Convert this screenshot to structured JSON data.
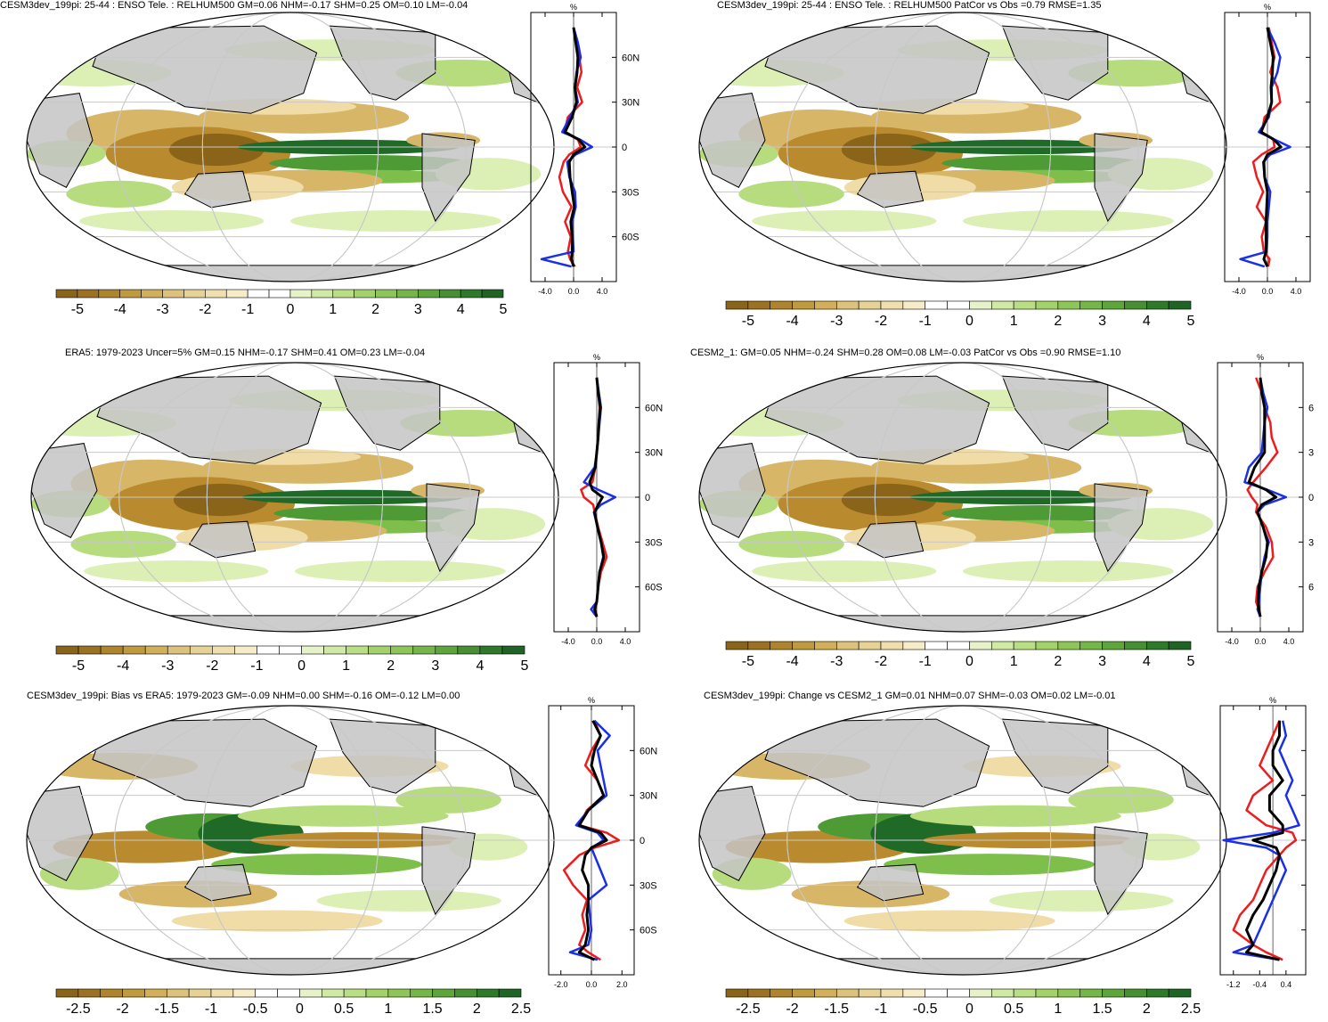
{
  "colors": {
    "brown_dark": "#8a6418",
    "brown": "#b98a2e",
    "tan": "#d8b668",
    "tan_light": "#efdca6",
    "white": "#ffffff",
    "green_pale": "#dcefb4",
    "green_light": "#b6dc7e",
    "green": "#7ebf4c",
    "green_mid": "#4e9a34",
    "green_dark": "#1f6a27",
    "land": "#c4c4c4",
    "grid": "#c8c8c8",
    "curve_red": "#ee1c1c",
    "curve_blue": "#1a2fe6",
    "curve_black": "#000000"
  },
  "colorbar_main": {
    "labels": [
      "-5",
      "-4",
      "-3",
      "-2",
      "-1",
      "0",
      "1",
      "2",
      "3",
      "4",
      "5"
    ],
    "colors": [
      "#8a6418",
      "#9c7222",
      "#ae842c",
      "#c09a3e",
      "#d2b05a",
      "#dcc27a",
      "#e6d294",
      "#efdfad",
      "#f6ecc8",
      "#ffffff",
      "#ffffff",
      "#e6f3c8",
      "#d0e9a4",
      "#bade84",
      "#a4d26a",
      "#8ec558",
      "#76b648",
      "#5ea53c",
      "#468f32",
      "#2f7a2a",
      "#1f6424"
    ]
  },
  "colorbar_diff": {
    "labels": [
      "-2.5",
      "-2",
      "-1.5",
      "-1",
      "-0.5",
      "0",
      "0.5",
      "1",
      "1.5",
      "2",
      "2.5"
    ],
    "colors": [
      "#8a6418",
      "#9c7222",
      "#ae842c",
      "#c09a3e",
      "#d2b05a",
      "#dcc27a",
      "#e6d294",
      "#efdfad",
      "#f6ecc8",
      "#ffffff",
      "#ffffff",
      "#e6f3c8",
      "#d0e9a4",
      "#bade84",
      "#a4d26a",
      "#8ec558",
      "#76b648",
      "#5ea53c",
      "#468f32",
      "#2f7a2a",
      "#1f6424"
    ]
  },
  "panels": [
    {
      "title": "CESM3dev_199pi: 25-44 : ENSO Tele. : RELHUM500 GM=0.06 NHM=-0.17 SHM=0.25 OM=0.10 LM=-0.04",
      "unit": "%",
      "xticks": [
        "-4.0",
        "0.0",
        "4.0"
      ],
      "xlim": [
        -6,
        6
      ],
      "lat_labels": [
        "60N",
        "30N",
        "0",
        "30S",
        "60S"
      ],
      "colorbar": "main"
    },
    {
      "title": "CESM3dev_199pi: 25-44 : ENSO Tele. : RELHUM500 PatCor vs Obs =0.79 RMSE=1.35",
      "unit": "%",
      "xticks": [
        "-4.0",
        "0.0",
        "4.0"
      ],
      "xlim": [
        -6,
        6
      ],
      "lat_labels": [
        "",
        "",
        "",
        "",
        ""
      ],
      "colorbar": "main"
    },
    {
      "title": "ERA5: 1979-2023 Uncer=5% GM=0.15 NHM=-0.17 SHM=0.41 OM=0.23 LM=-0.04",
      "unit": "%",
      "xticks": [
        "-4.0",
        "0.0",
        "4.0"
      ],
      "xlim": [
        -6,
        6
      ],
      "lat_labels": [
        "60N",
        "30N",
        "0",
        "30S",
        "60S"
      ],
      "colorbar": "main"
    },
    {
      "title": "CESM2_1: GM=0.05 NHM=-0.24 SHM=0.28 OM=0.08 LM=-0.03 PatCor vs Obs =0.90 RMSE=1.10",
      "unit": "%",
      "xticks": [
        "-4.0",
        "0.0",
        "4.0"
      ],
      "xlim": [
        -6,
        6
      ],
      "lat_labels": [
        "6",
        "3",
        "0",
        "3",
        "6"
      ],
      "colorbar": "main"
    },
    {
      "title": "CESM3dev_199pi: Bias vs ERA5: 1979-2023 GM=-0.09 NHM=0.00 SHM=-0.16 OM=-0.12 LM=0.00",
      "unit": "%",
      "xticks": [
        "-2.0",
        "0.0",
        "2.0"
      ],
      "xlim": [
        -2.8,
        2.8
      ],
      "lat_labels": [
        "60N",
        "30N",
        "0",
        "30S",
        "60S"
      ],
      "colorbar": "diff"
    },
    {
      "title": "CESM3dev_199pi: Change vs CESM2_1 GM=0.01 NHM=0.07 SHM=-0.03 OM=0.02 LM=-0.01",
      "unit": "%",
      "xticks": [
        "-1.2",
        "-0.4",
        "0.4"
      ],
      "xlim": [
        -1.6,
        1.0
      ],
      "lat_labels": [
        "",
        "",
        "",
        "",
        ""
      ],
      "colorbar": "diff"
    }
  ],
  "chart_data": [
    {
      "type": "line",
      "title": "CESM3dev_199pi: 25-44 : ENSO Tele. : RELHUM500 GM=0.06 NHM=-0.17 SHM=0.25 OM=0.10 LM=-0.04",
      "xlabel": "%",
      "ylabel": "",
      "xlim": [
        -6,
        6
      ],
      "ylim": [
        -90,
        90
      ],
      "y": [
        80,
        70,
        60,
        50,
        40,
        30,
        20,
        10,
        5,
        0,
        -5,
        -10,
        -20,
        -30,
        -40,
        -50,
        -60,
        -70,
        -75,
        -80
      ],
      "series": [
        {
          "color": "#ee1c1c",
          "values": [
            0.0,
            0.4,
            0.8,
            1.1,
            0.5,
            1.2,
            -0.8,
            -1.3,
            0.6,
            1.0,
            -0.6,
            -1.4,
            -2.0,
            -1.5,
            -0.3,
            -1.2,
            -0.4,
            -0.8,
            -0.5,
            0.2
          ]
        },
        {
          "color": "#1a2fe6",
          "values": [
            0.0,
            0.6,
            1.0,
            0.4,
            0.2,
            0.6,
            -0.5,
            -1.6,
            0.9,
            2.6,
            0.3,
            -0.9,
            -0.6,
            0.2,
            0.3,
            -0.2,
            -0.1,
            0.0,
            -4.5,
            -0.3
          ]
        },
        {
          "color": "#000000",
          "values": [
            0.0,
            0.3,
            0.6,
            0.5,
            0.2,
            0.4,
            -0.2,
            -1.2,
            0.7,
            1.6,
            0.0,
            -0.6,
            -0.5,
            -0.2,
            0.1,
            -0.4,
            -0.2,
            -0.2,
            -0.3,
            0.0
          ]
        }
      ]
    },
    {
      "type": "line",
      "title": "CESM3dev_199pi: 25-44 : ENSO Tele. : RELHUM500 PatCor vs Obs =0.79 RMSE=1.35",
      "xlabel": "%",
      "ylabel": "",
      "xlim": [
        -6,
        6
      ],
      "ylim": [
        -90,
        90
      ],
      "y": [
        80,
        70,
        60,
        50,
        40,
        30,
        20,
        10,
        5,
        0,
        -5,
        -10,
        -20,
        -30,
        -40,
        -50,
        -60,
        -70,
        -75,
        -80
      ],
      "series": [
        {
          "color": "#ee1c1c",
          "values": [
            0.2,
            0.6,
            1.0,
            0.4,
            1.4,
            1.8,
            -0.4,
            -0.8,
            0.8,
            1.0,
            -0.8,
            -2.0,
            -1.5,
            -0.6,
            -1.5,
            -0.2,
            -0.8,
            -0.5,
            0.3,
            0.1
          ]
        },
        {
          "color": "#1a2fe6",
          "values": [
            0.0,
            1.0,
            1.8,
            1.4,
            0.6,
            0.6,
            0.2,
            -1.2,
            1.0,
            3.2,
            0.4,
            -0.6,
            -0.4,
            0.4,
            0.2,
            0.0,
            0.0,
            -0.1,
            -3.8,
            -0.4
          ]
        },
        {
          "color": "#000000",
          "values": [
            0.0,
            0.4,
            0.8,
            0.7,
            0.5,
            0.6,
            0.0,
            -0.9,
            0.9,
            1.9,
            0.0,
            -0.5,
            -0.4,
            0.0,
            -0.1,
            -0.2,
            -0.2,
            -0.2,
            -0.5,
            0.0
          ]
        }
      ]
    },
    {
      "type": "line",
      "title": "ERA5: 1979-2023 Uncer=5% GM=0.15 NHM=-0.17 SHM=0.41 OM=0.23 LM=-0.04",
      "xlabel": "%",
      "ylabel": "",
      "xlim": [
        -6,
        6
      ],
      "ylim": [
        -90,
        90
      ],
      "y": [
        80,
        70,
        60,
        50,
        40,
        30,
        20,
        10,
        5,
        0,
        -5,
        -10,
        -20,
        -30,
        -40,
        -50,
        -60,
        -70,
        -75,
        -80
      ],
      "series": [
        {
          "color": "#ee1c1c",
          "values": [
            0.0,
            0.2,
            0.4,
            0.3,
            0.2,
            0.0,
            -0.2,
            -0.6,
            -2.2,
            -1.8,
            -0.5,
            -0.3,
            0.2,
            0.8,
            1.4,
            0.6,
            0.2,
            0.0,
            -0.2,
            0.0
          ]
        },
        {
          "color": "#1a2fe6",
          "values": [
            0.0,
            0.3,
            0.6,
            0.4,
            0.2,
            0.0,
            -0.3,
            -1.8,
            0.2,
            2.6,
            0.6,
            -0.4,
            0.1,
            0.6,
            0.9,
            0.4,
            0.2,
            0.0,
            -0.8,
            0.0
          ]
        },
        {
          "color": "#000000",
          "values": [
            0.0,
            0.2,
            0.5,
            0.3,
            0.2,
            0.0,
            -0.2,
            -1.0,
            -0.6,
            0.8,
            0.2,
            -0.3,
            0.1,
            0.6,
            1.0,
            0.4,
            0.2,
            0.0,
            -0.3,
            0.0
          ]
        }
      ]
    },
    {
      "type": "line",
      "title": "CESM2_1: GM=0.05 NHM=-0.24 SHM=0.28 OM=0.08 LM=-0.03 PatCor vs Obs =0.90 RMSE=1.10",
      "xlabel": "%",
      "ylabel": "",
      "xlim": [
        -6,
        6
      ],
      "ylim": [
        -90,
        90
      ],
      "y": [
        80,
        70,
        60,
        50,
        40,
        30,
        20,
        10,
        5,
        0,
        -5,
        -10,
        -20,
        -30,
        -40,
        -50,
        -60,
        -70,
        -75,
        -80
      ],
      "series": [
        {
          "color": "#ee1c1c",
          "values": [
            -0.6,
            0.2,
            0.6,
            1.4,
            1.6,
            2.4,
            0.8,
            -1.0,
            -1.8,
            -1.2,
            -0.4,
            -0.6,
            0.8,
            1.6,
            1.8,
            0.6,
            -0.4,
            -0.6,
            -0.2,
            0.0
          ]
        },
        {
          "color": "#1a2fe6",
          "values": [
            0.0,
            0.4,
            1.0,
            0.6,
            0.4,
            0.2,
            -1.6,
            -2.2,
            1.0,
            3.6,
            0.6,
            -0.4,
            0.4,
            1.2,
            0.6,
            0.2,
            0.0,
            -0.2,
            -0.4,
            0.0
          ]
        },
        {
          "color": "#000000",
          "values": [
            0.0,
            0.2,
            0.6,
            0.6,
            0.6,
            0.6,
            -0.8,
            -1.6,
            0.8,
            2.2,
            0.2,
            -0.4,
            0.4,
            1.0,
            0.8,
            0.2,
            -0.2,
            -0.3,
            -0.2,
            0.0
          ]
        }
      ]
    },
    {
      "type": "line",
      "title": "CESM3dev_199pi: Bias vs ERA5: 1979-2023 GM=-0.09 NHM=0.00 SHM=-0.16 OM=-0.12 LM=0.00",
      "xlabel": "%",
      "ylabel": "",
      "xlim": [
        -2.8,
        2.8
      ],
      "ylim": [
        -90,
        90
      ],
      "y": [
        80,
        70,
        60,
        50,
        40,
        30,
        20,
        10,
        5,
        0,
        -5,
        -10,
        -20,
        -30,
        -40,
        -50,
        -60,
        -70,
        -75,
        -80
      ],
      "series": [
        {
          "color": "#ee1c1c",
          "values": [
            0.2,
            0.6,
            0.0,
            -0.4,
            0.4,
            0.8,
            -0.3,
            -0.8,
            1.0,
            1.8,
            0.2,
            -0.8,
            -1.8,
            -1.2,
            -0.3,
            -0.6,
            -0.4,
            -0.8,
            -0.2,
            0.6
          ]
        },
        {
          "color": "#1a2fe6",
          "values": [
            0.2,
            1.2,
            0.4,
            0.6,
            0.8,
            1.0,
            -0.2,
            -1.0,
            0.4,
            0.8,
            0.0,
            0.2,
            0.6,
            1.0,
            -0.2,
            -0.1,
            0.0,
            -0.2,
            -1.4,
            0.4
          ]
        },
        {
          "color": "#000000",
          "values": [
            0.1,
            0.6,
            0.2,
            0.0,
            0.4,
            0.8,
            -0.2,
            -0.8,
            0.6,
            1.0,
            0.0,
            -0.4,
            -0.6,
            -0.2,
            -0.2,
            -0.3,
            -0.2,
            -0.4,
            -0.8,
            0.2
          ]
        }
      ]
    },
    {
      "type": "line",
      "title": "CESM3dev_199pi: Change vs CESM2_1 GM=0.01 NHM=0.07 SHM=-0.03 OM=0.02 LM=-0.01",
      "xlabel": "%",
      "ylabel": "",
      "xlim": [
        -1.6,
        1.0
      ],
      "ylim": [
        -90,
        90
      ],
      "y": [
        80,
        70,
        60,
        50,
        40,
        30,
        20,
        10,
        5,
        0,
        -5,
        -10,
        -20,
        -30,
        -40,
        -50,
        -60,
        -70,
        -75,
        -80
      ],
      "series": [
        {
          "color": "#ee1c1c",
          "values": [
            0.2,
            0.0,
            -0.2,
            -0.4,
            0.0,
            -0.6,
            -0.8,
            -0.2,
            0.6,
            0.7,
            0.4,
            0.2,
            -0.2,
            -0.4,
            -0.6,
            -1.0,
            -1.2,
            -0.6,
            -0.2,
            0.3
          ]
        },
        {
          "color": "#1a2fe6",
          "values": [
            0.3,
            0.4,
            0.2,
            0.4,
            0.6,
            0.4,
            0.6,
            0.8,
            0.0,
            -1.5,
            -0.2,
            0.2,
            0.4,
            0.2,
            0.0,
            -0.2,
            -0.4,
            -0.6,
            -1.2,
            0.2
          ]
        },
        {
          "color": "#000000",
          "values": [
            0.2,
            0.2,
            0.0,
            0.0,
            0.3,
            -0.1,
            -0.1,
            0.3,
            0.3,
            -0.6,
            0.1,
            0.2,
            0.1,
            -0.1,
            -0.3,
            -0.6,
            -0.8,
            -0.6,
            -0.8,
            0.2
          ]
        }
      ]
    }
  ]
}
